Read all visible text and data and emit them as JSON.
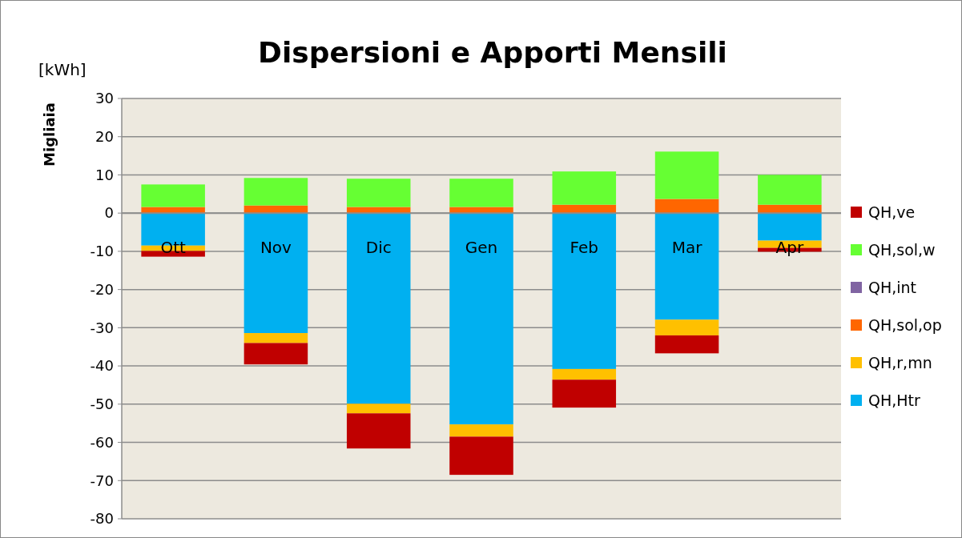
{
  "chart_data": {
    "type": "bar",
    "title": "Dispersioni e Apporti Mensili",
    "ylabel": "Migliaia",
    "annotations": [
      "[kWh]"
    ],
    "categories": [
      "Ott",
      "Nov",
      "Dic",
      "Gen",
      "Feb",
      "Mar",
      "Apr"
    ],
    "stacked": true,
    "series": [
      {
        "name": "QH,Htr",
        "color": "#00b0f0",
        "values": [
          -8.5,
          -31.4,
          -49.9,
          -55.3,
          -40.8,
          -27.9,
          -7.2
        ]
      },
      {
        "name": "QH,r,mn",
        "color": "#ffc000",
        "values": [
          -1.4,
          -2.6,
          -2.5,
          -3.2,
          -2.8,
          -4.1,
          -1.9
        ]
      },
      {
        "name": "QH,sol,op",
        "color": "#ff6600",
        "values": [
          1.6,
          2.0,
          1.6,
          1.6,
          2.2,
          3.7,
          2.2
        ]
      },
      {
        "name": "QH,int",
        "color": "#8064a2",
        "values": [
          0,
          0,
          0,
          0,
          0,
          0,
          0
        ]
      },
      {
        "name": "QH,sol,w",
        "color": "#66ff33",
        "values": [
          5.9,
          7.2,
          7.4,
          7.4,
          8.7,
          12.4,
          7.8
        ]
      },
      {
        "name": "QH,ve",
        "color": "#c00000",
        "values": [
          -1.5,
          -5.6,
          -9.2,
          -10.0,
          -7.3,
          -4.7,
          -1.0
        ]
      }
    ],
    "ylim": [
      -80,
      30
    ],
    "yticks": [
      -80,
      -70,
      -60,
      -50,
      -40,
      -30,
      -20,
      -10,
      0,
      10,
      20,
      30
    ],
    "grid": "y",
    "legend": "right"
  }
}
